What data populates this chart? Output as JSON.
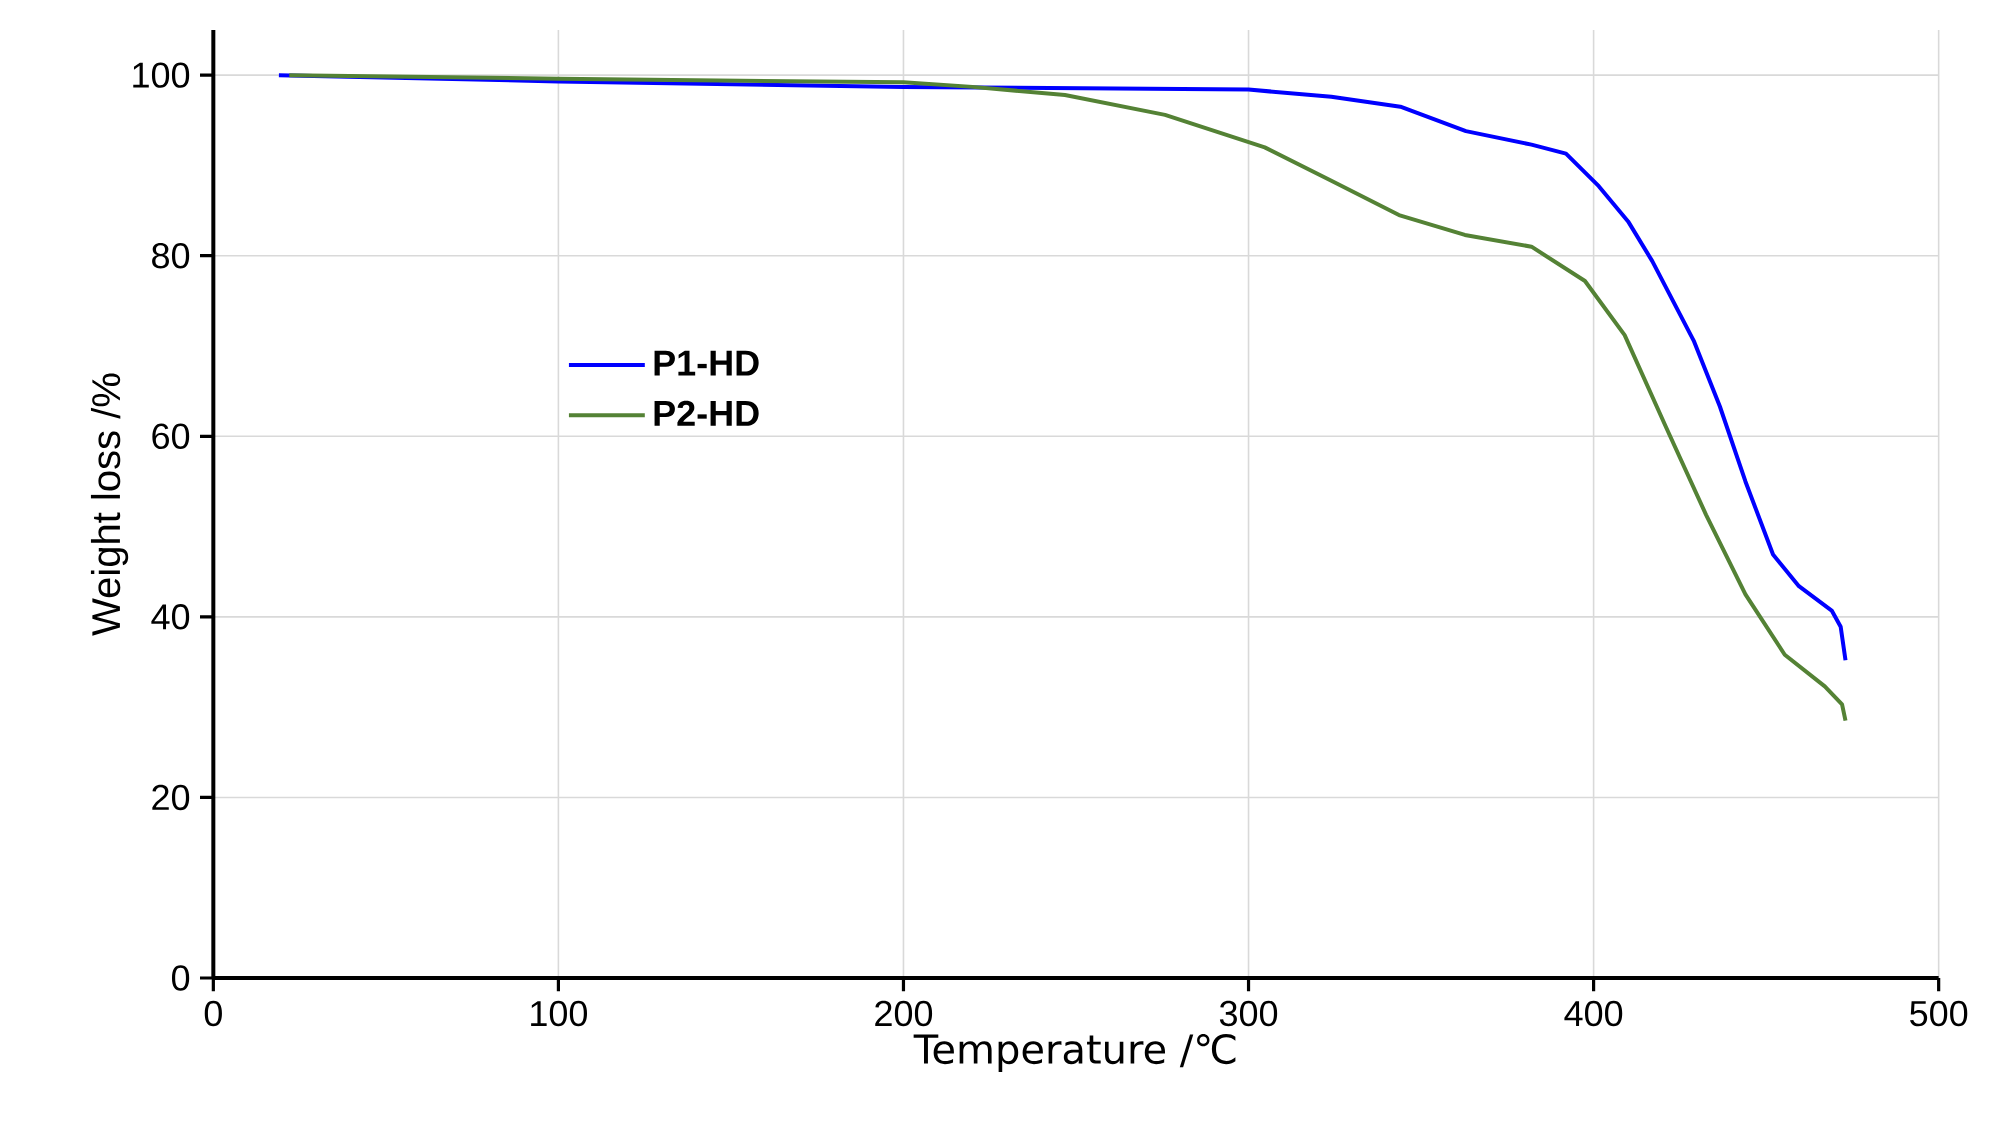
{
  "chart_data": {
    "type": "line",
    "xlabel": "Temperature /℃",
    "ylabel": "Weight loss /%",
    "xlim": [
      0,
      500
    ],
    "xticks": [
      0,
      100,
      200,
      300,
      400,
      500
    ],
    "ylim": [
      0,
      105
    ],
    "yticks": [
      0,
      20,
      40,
      60,
      80,
      100
    ],
    "grid": true,
    "legend": "left",
    "marker": "none",
    "line_style": "solid",
    "series": [
      {
        "name": "P1-HD",
        "color": "#0000ff",
        "x": [
          19,
          100,
          200,
          300,
          324,
          344,
          363,
          382,
          392,
          401.5,
          410,
          417,
          429,
          436.6,
          444,
          452,
          459.5,
          469,
          471.6,
          473
        ],
        "values": [
          100,
          99.3,
          98.7,
          98.4,
          97.6,
          96.5,
          93.8,
          92.3,
          91.3,
          87.7,
          83.8,
          79.4,
          70.6,
          63.3,
          55,
          46.9,
          43.4,
          40.7,
          38.9,
          35.2
        ]
      },
      {
        "name": "P2-HD",
        "color": "#548235",
        "x": [
          22,
          100,
          200,
          220,
          246.8,
          275.8,
          304.7,
          324,
          343.6,
          362.7,
          382,
          397.5,
          409,
          421,
          432.6,
          444,
          455.4,
          467,
          472,
          473
        ],
        "values": [
          100,
          99.6,
          99.2,
          98.7,
          97.8,
          95.6,
          92,
          88.3,
          84.5,
          82.3,
          81,
          77.2,
          71.2,
          61,
          51.3,
          42.5,
          35.8,
          32.3,
          30.3,
          28.5
        ]
      }
    ]
  }
}
